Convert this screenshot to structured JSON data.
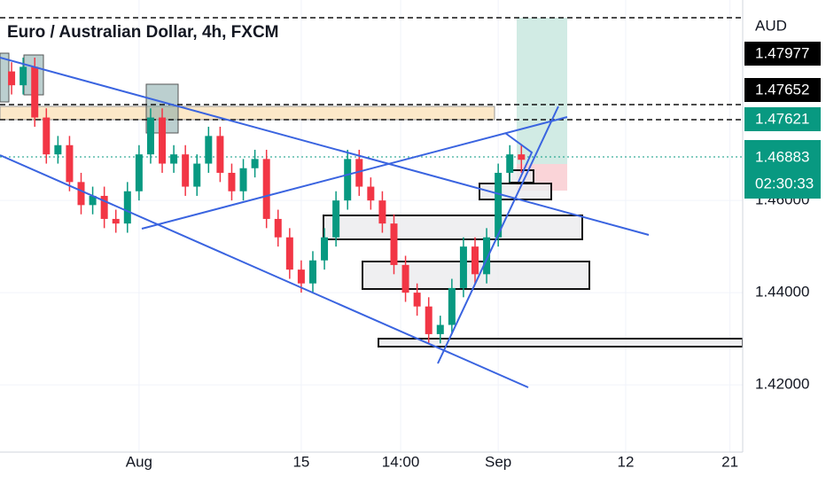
{
  "chart_data": {
    "type": "candlestick",
    "title": "Euro / Australian Dollar, 4h, FXCM",
    "currency": "AUD",
    "price_labels": [
      "1.47977",
      "1.47652",
      "1.47621"
    ],
    "countdown": "02:30:33",
    "up_color": "#089981",
    "down_color": "#f23645",
    "x": [
      -10,
      -9,
      -8,
      -7,
      -6,
      -5,
      -4,
      -3,
      -2,
      -1,
      0,
      1,
      2,
      3,
      4,
      5,
      6,
      7,
      8,
      9,
      10,
      11,
      12,
      13,
      14,
      15,
      16,
      17,
      18,
      19,
      20,
      21,
      22,
      23,
      24,
      25,
      26,
      27,
      28,
      29,
      30,
      31,
      32,
      33,
      34
    ],
    "open": [
      1.488,
      1.485,
      1.489,
      1.478,
      1.47,
      1.472,
      1.464,
      1.459,
      1.461,
      1.456,
      1.455,
      1.462,
      1.47,
      1.478,
      1.468,
      1.47,
      1.463,
      1.468,
      1.474,
      1.466,
      1.462,
      1.467,
      1.469,
      1.456,
      1.452,
      1.445,
      1.442,
      1.447,
      1.452,
      1.46,
      1.469,
      1.463,
      1.46,
      1.455,
      1.446,
      1.44,
      1.437,
      1.431,
      1.433,
      1.441,
      1.45,
      1.444,
      1.452,
      1.466,
      1.47
    ],
    "high": [
      1.49,
      1.491,
      1.491,
      1.48,
      1.474,
      1.474,
      1.466,
      1.463,
      1.463,
      1.458,
      1.464,
      1.472,
      1.48,
      1.48,
      1.472,
      1.472,
      1.47,
      1.476,
      1.476,
      1.468,
      1.469,
      1.471,
      1.471,
      1.458,
      1.454,
      1.447,
      1.449,
      1.454,
      1.462,
      1.471,
      1.471,
      1.465,
      1.462,
      1.457,
      1.448,
      1.442,
      1.439,
      1.435,
      1.443,
      1.452,
      1.452,
      1.454,
      1.468,
      1.472,
      1.472
    ],
    "low": [
      1.483,
      1.483,
      1.476,
      1.468,
      1.468,
      1.462,
      1.457,
      1.457,
      1.454,
      1.453,
      1.453,
      1.46,
      1.468,
      1.466,
      1.466,
      1.461,
      1.461,
      1.466,
      1.464,
      1.46,
      1.46,
      1.465,
      1.454,
      1.45,
      1.443,
      1.44,
      1.44,
      1.445,
      1.45,
      1.458,
      1.461,
      1.458,
      1.453,
      1.444,
      1.438,
      1.435,
      1.429,
      1.429,
      1.431,
      1.439,
      1.442,
      1.442,
      1.45,
      1.464,
      1.466
    ],
    "close": [
      1.485,
      1.489,
      1.478,
      1.47,
      1.472,
      1.464,
      1.459,
      1.461,
      1.456,
      1.455,
      1.462,
      1.47,
      1.478,
      1.468,
      1.47,
      1.463,
      1.468,
      1.474,
      1.466,
      1.462,
      1.467,
      1.469,
      1.456,
      1.452,
      1.445,
      1.442,
      1.447,
      1.452,
      1.46,
      1.469,
      1.463,
      1.46,
      1.455,
      1.446,
      1.44,
      1.437,
      1.431,
      1.433,
      1.441,
      1.45,
      1.444,
      1.452,
      1.466,
      1.47,
      1.46883
    ],
    "xlim": [
      -11,
      53.1
    ],
    "xticks": [
      {
        "value": 1,
        "label": "Aug"
      },
      15,
      {
        "value": 23.58,
        "label": "14:00"
      },
      {
        "value": 32,
        "label": "Sep"
      },
      {
        "value": 43,
        "label": "12"
      },
      {
        "value": 52,
        "label": "21"
      }
    ],
    "ylim": [
      1.4054,
      1.5035
    ],
    "yticks": [
      {
        "value": 1.42,
        "label": "1.42000"
      },
      {
        "value": 1.44,
        "label": "1.44000"
      },
      {
        "value": 1.46,
        "label": "1.46000"
      }
    ],
    "grid": true
  }
}
